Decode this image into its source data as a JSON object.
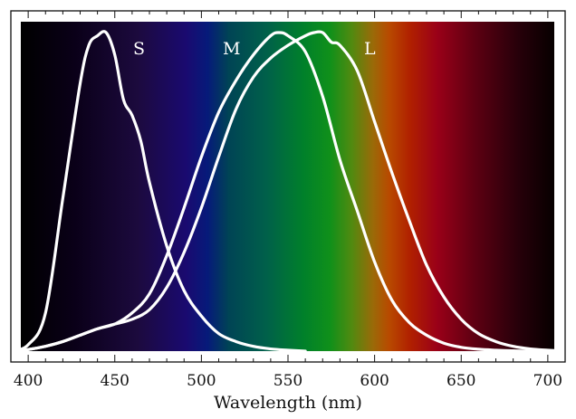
{
  "chart_data": {
    "type": "line",
    "title": "",
    "xlabel": "Wavelength (nm)",
    "ylabel": "",
    "xlim": [
      390,
      710
    ],
    "ylim": [
      0,
      1
    ],
    "x_ticks": [
      "400",
      "450",
      "500",
      "550",
      "600",
      "650",
      "700"
    ],
    "grid": false,
    "legend": "none",
    "line_color": "#ffffff",
    "background": "visible spectrum gradient",
    "series": [
      {
        "name": "S",
        "x": [
          390,
          400,
          410,
          420,
          430,
          435,
          440,
          445,
          450,
          455,
          460,
          465,
          470,
          480,
          490,
          500,
          510,
          520,
          530,
          540,
          550,
          560
        ],
        "y": [
          0.0,
          0.02,
          0.12,
          0.48,
          0.84,
          0.96,
          0.99,
          1.0,
          0.93,
          0.79,
          0.74,
          0.66,
          0.53,
          0.33,
          0.19,
          0.11,
          0.055,
          0.03,
          0.015,
          0.007,
          0.003,
          0.0
        ]
      },
      {
        "name": "M",
        "x": [
          390,
          400,
          410,
          420,
          430,
          440,
          450,
          460,
          470,
          480,
          490,
          500,
          510,
          520,
          530,
          540,
          545,
          550,
          560,
          570,
          580,
          590,
          600,
          610,
          620,
          630,
          640,
          650,
          660,
          670,
          680,
          690,
          700,
          710
        ],
        "y": [
          0.0,
          0.005,
          0.015,
          0.03,
          0.05,
          0.07,
          0.085,
          0.12,
          0.18,
          0.3,
          0.45,
          0.61,
          0.75,
          0.85,
          0.93,
          0.99,
          1.0,
          0.99,
          0.94,
          0.8,
          0.6,
          0.44,
          0.28,
          0.16,
          0.09,
          0.05,
          0.025,
          0.012,
          0.006,
          0.003,
          0.001,
          0.0,
          0.0,
          0.0
        ]
      },
      {
        "name": "L",
        "x": [
          390,
          400,
          410,
          420,
          430,
          440,
          450,
          460,
          470,
          480,
          490,
          500,
          510,
          520,
          530,
          540,
          550,
          560,
          565,
          570,
          575,
          580,
          590,
          600,
          610,
          620,
          630,
          640,
          650,
          660,
          670,
          680,
          690,
          700,
          710
        ],
        "y": [
          0.0,
          0.005,
          0.015,
          0.03,
          0.05,
          0.07,
          0.085,
          0.1,
          0.13,
          0.2,
          0.31,
          0.45,
          0.61,
          0.76,
          0.86,
          0.92,
          0.96,
          0.99,
          1.0,
          1.0,
          0.97,
          0.96,
          0.88,
          0.72,
          0.56,
          0.41,
          0.27,
          0.17,
          0.1,
          0.055,
          0.03,
          0.015,
          0.007,
          0.003,
          0.0
        ]
      }
    ]
  }
}
